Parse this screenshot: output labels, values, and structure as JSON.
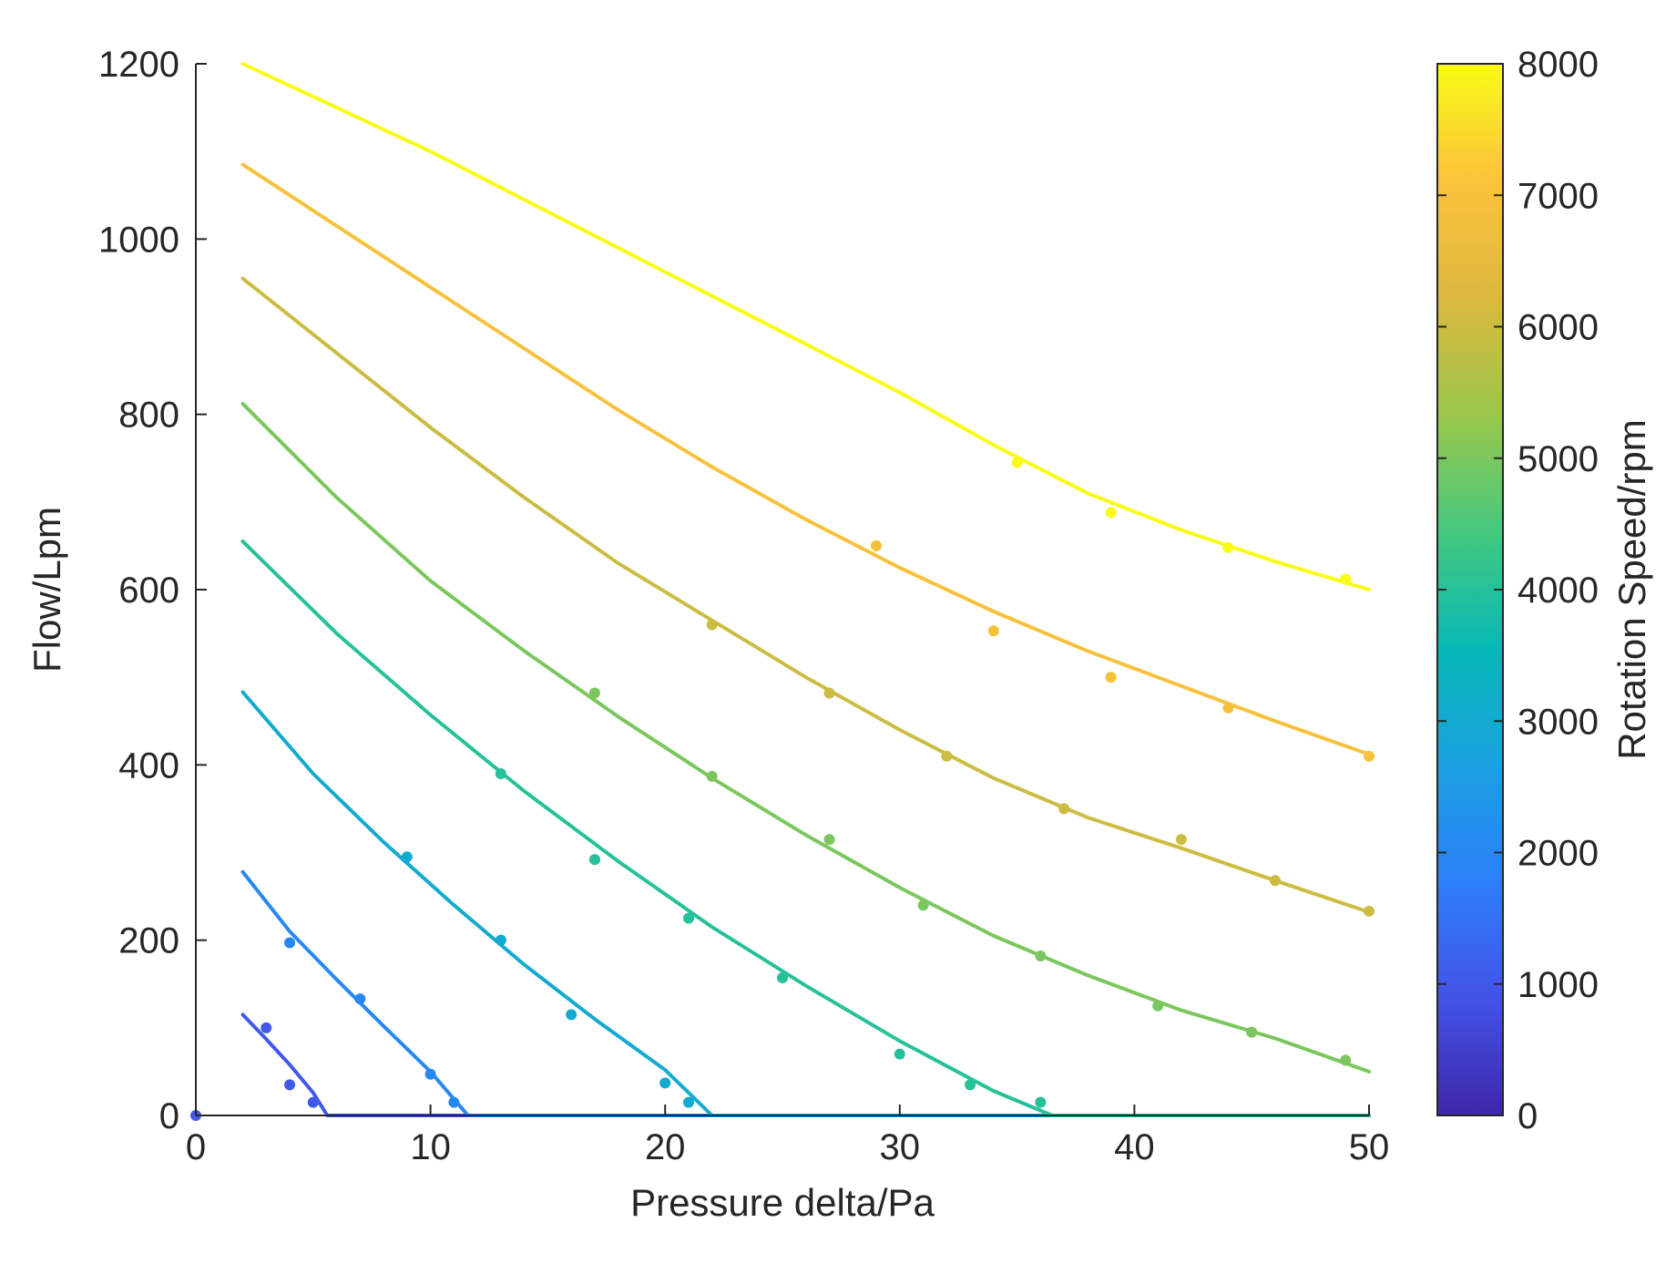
{
  "chart_data": {
    "type": "line",
    "title": "",
    "xlabel": "Pressure delta/Pa",
    "ylabel": "Flow/Lpm",
    "xlim": [
      0,
      50
    ],
    "ylim": [
      0,
      1200
    ],
    "xticks": [
      "0",
      "10",
      "20",
      "30",
      "40",
      "50"
    ],
    "yticks": [
      "0",
      "200",
      "400",
      "600",
      "800",
      "1000",
      "1200"
    ],
    "colorbar": {
      "label": "Rotation Speed/rpm",
      "range": [
        0,
        8000
      ],
      "ticks": [
        "0",
        "1000",
        "2000",
        "3000",
        "4000",
        "5000",
        "6000",
        "7000",
        "8000"
      ],
      "colormap": [
        "#3e26a8",
        "#4353e8",
        "#2d7ff9",
        "#1aa1e0",
        "#07b9b6",
        "#45c87e",
        "#9bc74a",
        "#dcb83f",
        "#fcc23c",
        "#f9fb15"
      ]
    },
    "grid": false,
    "series": [
      {
        "speed": 1000,
        "curve": [
          [
            2,
            115
          ],
          [
            3,
            87
          ],
          [
            4,
            58
          ],
          [
            5,
            26
          ],
          [
            5.6,
            0
          ],
          [
            50,
            0
          ]
        ],
        "points": [
          [
            0,
            0
          ],
          [
            3,
            100
          ],
          [
            4,
            35
          ],
          [
            5,
            15
          ]
        ]
      },
      {
        "speed": 2000,
        "curve": [
          [
            2,
            278
          ],
          [
            4,
            210
          ],
          [
            6,
            155
          ],
          [
            8,
            102
          ],
          [
            10,
            50
          ],
          [
            11.6,
            0
          ],
          [
            50,
            0
          ]
        ],
        "points": [
          [
            4,
            197
          ],
          [
            7,
            133
          ],
          [
            10,
            47
          ],
          [
            11,
            15
          ]
        ]
      },
      {
        "speed": 3000,
        "curve": [
          [
            2,
            483
          ],
          [
            5,
            390
          ],
          [
            8,
            312
          ],
          [
            11,
            240
          ],
          [
            14,
            172
          ],
          [
            17,
            110
          ],
          [
            20,
            52
          ],
          [
            22,
            0
          ],
          [
            50,
            0
          ]
        ],
        "points": [
          [
            9,
            295
          ],
          [
            13,
            200
          ],
          [
            16,
            115
          ],
          [
            17,
            292
          ],
          [
            20,
            37
          ],
          [
            21,
            15
          ]
        ]
      },
      {
        "speed": 4000,
        "curve": [
          [
            2,
            655
          ],
          [
            6,
            550
          ],
          [
            10,
            457
          ],
          [
            14,
            370
          ],
          [
            18,
            290
          ],
          [
            22,
            215
          ],
          [
            26,
            148
          ],
          [
            30,
            85
          ],
          [
            34,
            28
          ],
          [
            36.5,
            0
          ],
          [
            50,
            0
          ]
        ],
        "points": [
          [
            13,
            390
          ],
          [
            17,
            292
          ],
          [
            21,
            225
          ],
          [
            25,
            157
          ],
          [
            30,
            70
          ],
          [
            33,
            35
          ],
          [
            36,
            15
          ]
        ]
      },
      {
        "speed": 5000,
        "curve": [
          [
            2,
            812
          ],
          [
            6,
            705
          ],
          [
            10,
            610
          ],
          [
            14,
            530
          ],
          [
            18,
            455
          ],
          [
            22,
            385
          ],
          [
            26,
            320
          ],
          [
            30,
            260
          ],
          [
            34,
            205
          ],
          [
            38,
            160
          ],
          [
            42,
            120
          ],
          [
            46,
            88
          ],
          [
            50,
            50
          ]
        ],
        "points": [
          [
            17,
            482
          ],
          [
            22,
            387
          ],
          [
            27,
            315
          ],
          [
            31,
            240
          ],
          [
            36,
            182
          ],
          [
            41,
            125
          ],
          [
            45,
            95
          ],
          [
            49,
            63
          ]
        ]
      },
      {
        "speed": 6000,
        "curve": [
          [
            2,
            955
          ],
          [
            6,
            870
          ],
          [
            10,
            785
          ],
          [
            14,
            705
          ],
          [
            18,
            630
          ],
          [
            22,
            565
          ],
          [
            26,
            500
          ],
          [
            30,
            440
          ],
          [
            34,
            385
          ],
          [
            38,
            340
          ],
          [
            42,
            305
          ],
          [
            46,
            268
          ],
          [
            50,
            232
          ]
        ],
        "points": [
          [
            22,
            560
          ],
          [
            27,
            482
          ],
          [
            32,
            410
          ],
          [
            37,
            350
          ],
          [
            42,
            315
          ],
          [
            46,
            268
          ],
          [
            50,
            233
          ]
        ]
      },
      {
        "speed": 7000,
        "curve": [
          [
            2,
            1085
          ],
          [
            6,
            1015
          ],
          [
            10,
            945
          ],
          [
            14,
            875
          ],
          [
            18,
            805
          ],
          [
            22,
            740
          ],
          [
            26,
            680
          ],
          [
            30,
            625
          ],
          [
            34,
            575
          ],
          [
            38,
            530
          ],
          [
            42,
            490
          ],
          [
            46,
            450
          ],
          [
            50,
            412
          ]
        ],
        "points": [
          [
            29,
            650
          ],
          [
            34,
            553
          ],
          [
            39,
            500
          ],
          [
            44,
            465
          ],
          [
            50,
            410
          ]
        ]
      },
      {
        "speed": 8000,
        "curve": [
          [
            2,
            1200
          ],
          [
            6,
            1150
          ],
          [
            10,
            1100
          ],
          [
            14,
            1045
          ],
          [
            18,
            990
          ],
          [
            22,
            935
          ],
          [
            26,
            880
          ],
          [
            30,
            825
          ],
          [
            34,
            765
          ],
          [
            38,
            710
          ],
          [
            42,
            668
          ],
          [
            46,
            632
          ],
          [
            50,
            600
          ]
        ],
        "points": [
          [
            35,
            745
          ],
          [
            39,
            688
          ],
          [
            44,
            648
          ],
          [
            49,
            612
          ]
        ]
      }
    ]
  }
}
